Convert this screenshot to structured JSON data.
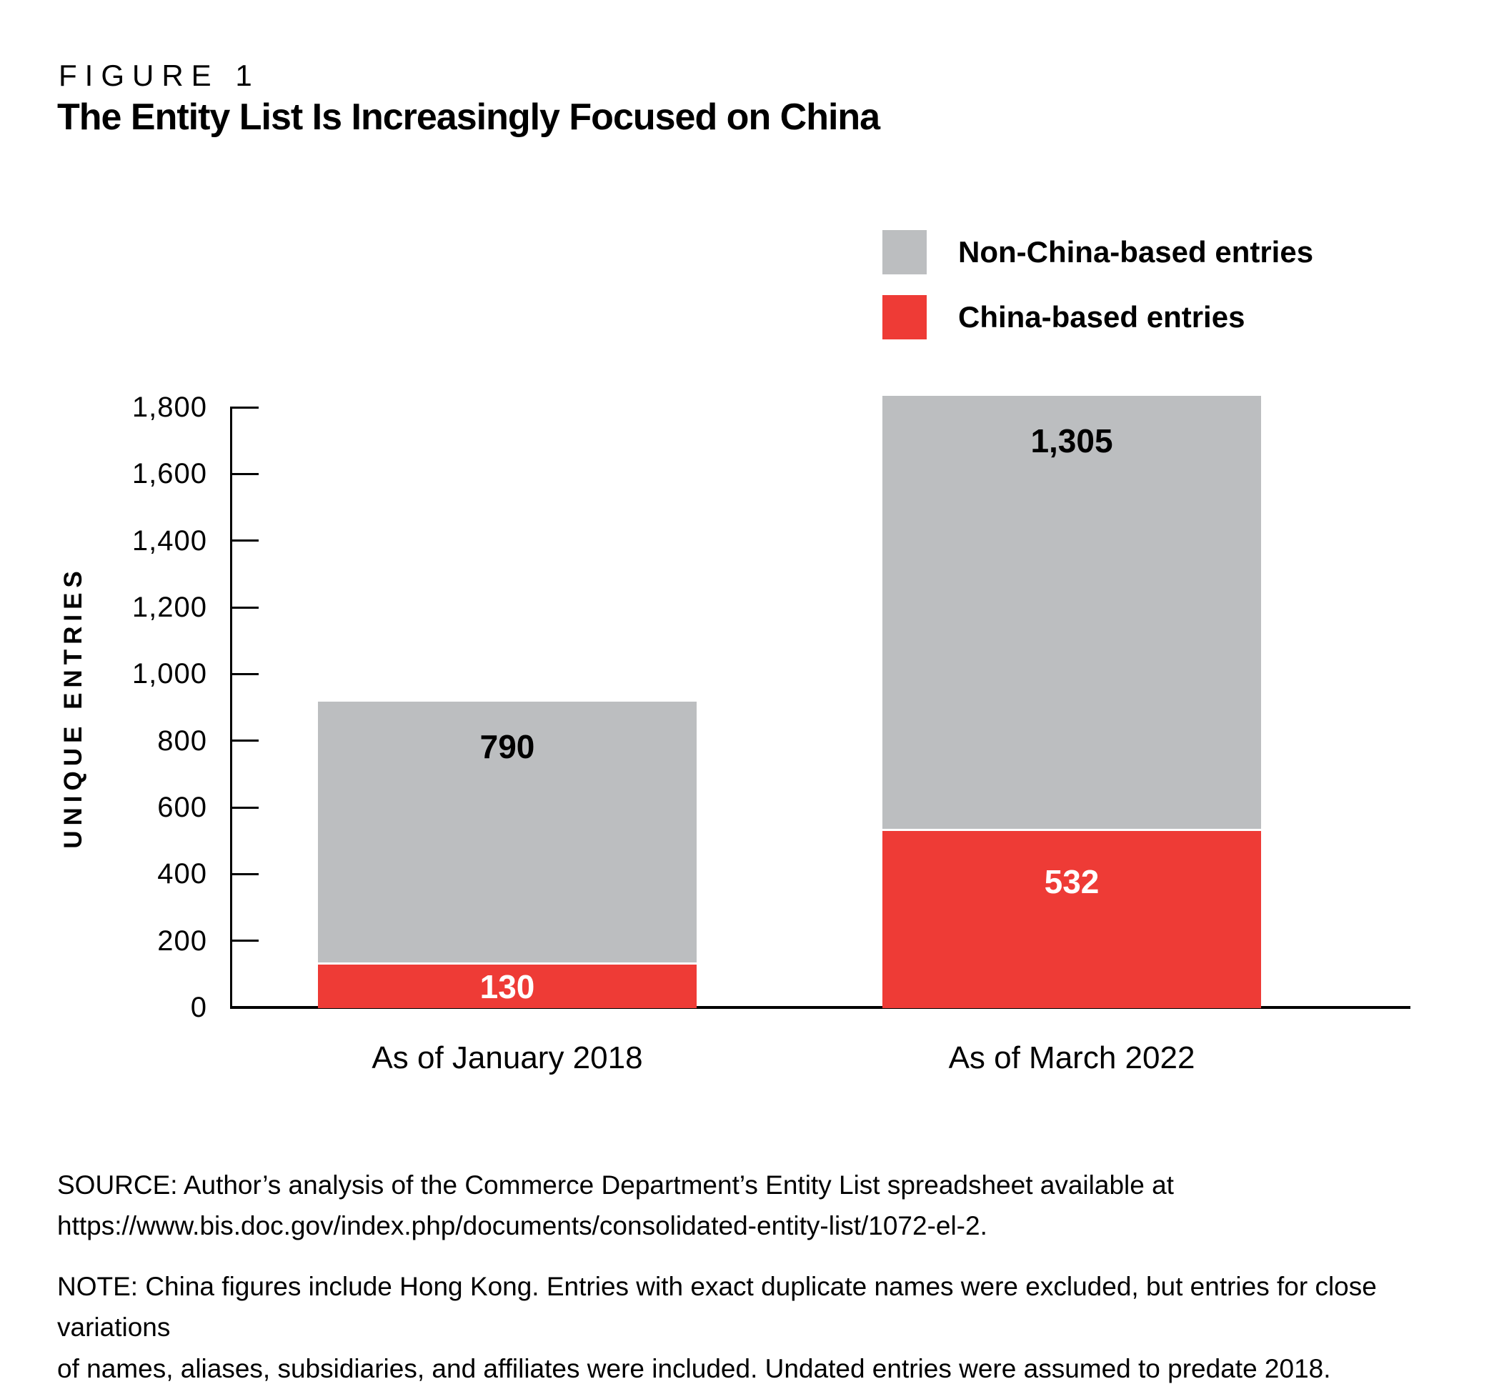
{
  "figure": {
    "kicker": "FIGURE 1",
    "title": "The Entity List Is Increasingly Focused on China"
  },
  "legend": [
    {
      "label": "Non-China-based entries",
      "color": "#BCBEC0"
    },
    {
      "label": "China-based entries",
      "color": "#EE3B36"
    }
  ],
  "chart_data": {
    "type": "bar",
    "stacked": true,
    "title": "The Entity List Is Increasingly Focused on China",
    "xlabel": "",
    "ylabel": "UNIQUE ENTRIES",
    "ylim": [
      0,
      1800
    ],
    "ytick_step": 200,
    "yticks": [
      "0",
      "200",
      "400",
      "600",
      "800",
      "1,000",
      "1,200",
      "1,400",
      "1,600",
      "1,800"
    ],
    "categories": [
      "As of January 2018",
      "As of March 2022"
    ],
    "series": [
      {
        "name": "China-based entries",
        "color": "#EE3B36",
        "values": [
          130,
          532
        ],
        "labels": [
          "130",
          "532"
        ]
      },
      {
        "name": "Non-China-based entries",
        "color": "#BCBEC0",
        "values": [
          790,
          1305
        ],
        "labels": [
          "790",
          "1,305"
        ]
      }
    ],
    "totals": [
      920,
      1837
    ],
    "legend_position": "top-right",
    "grid": false,
    "value_label_colors": {
      "china": "#ffffff",
      "non_china": "#000000"
    }
  },
  "source": "SOURCE: Author’s analysis of the Commerce Department’s Entity List spreadsheet available at\nhttps://www.bis.doc.gov/index.php/documents/consolidated-entity-list/1072-el-2.",
  "note": "NOTE: China figures include Hong Kong. Entries with exact duplicate names were excluded, but entries for close variations\nof names, aliases, subsidiaries, and affiliates were included. Undated entries were assumed to predate 2018."
}
